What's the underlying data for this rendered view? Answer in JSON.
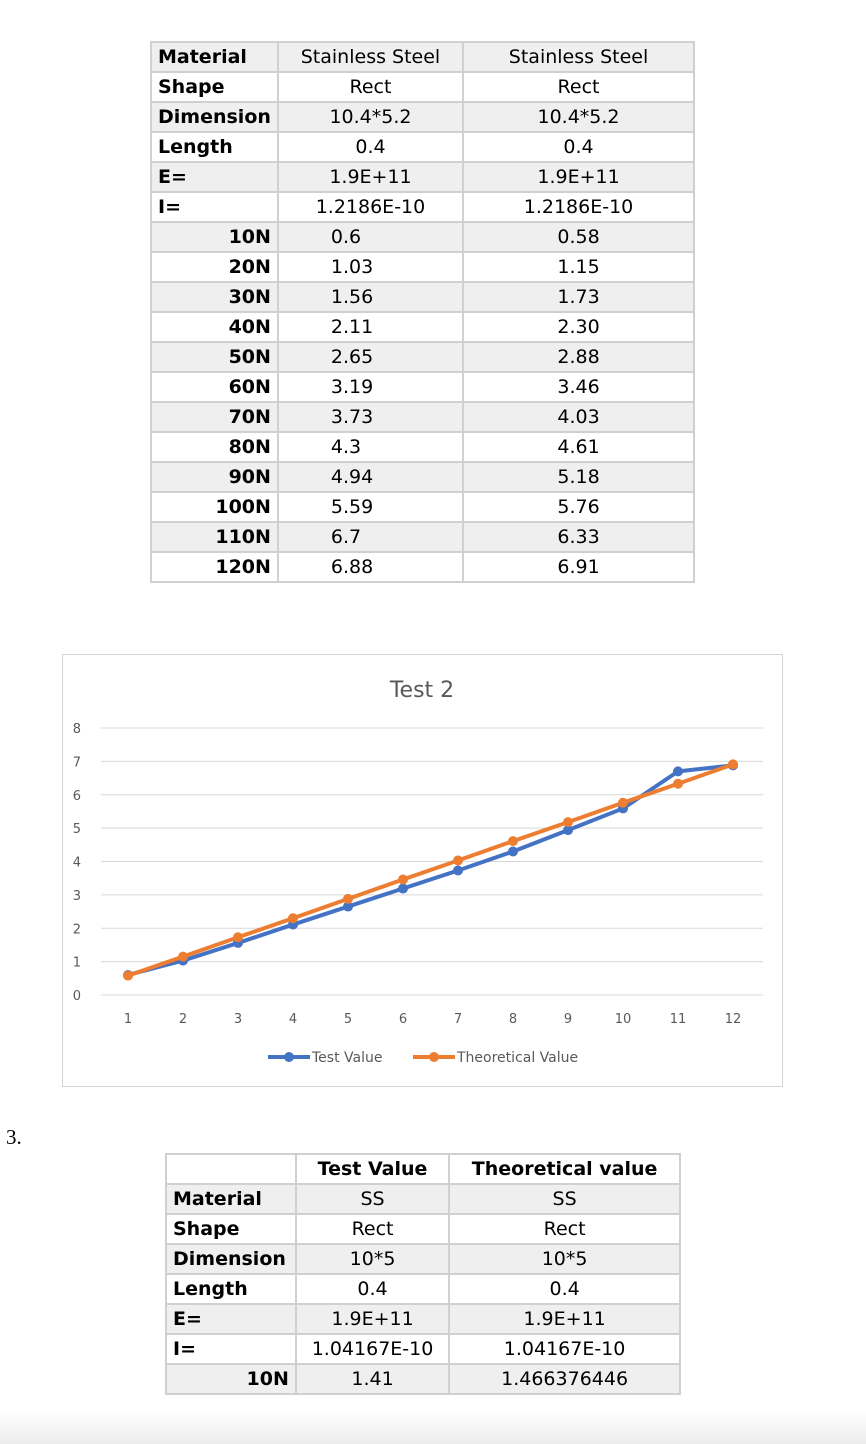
{
  "table1": {
    "rows": [
      {
        "label": "Material",
        "v1": "Stainless Steel",
        "v2": "Stainless Steel"
      },
      {
        "label": "Shape",
        "v1": "Rect",
        "v2": "Rect"
      },
      {
        "label": "Dimension",
        "v1": "10.4*5.2",
        "v2": "10.4*5.2"
      },
      {
        "label": "Length",
        "v1": "0.4",
        "v2": "0.4"
      },
      {
        "label": "E=",
        "v1": "1.9E+11",
        "v2": "1.9E+11"
      },
      {
        "label": "I=",
        "v1": "1.2186E-10",
        "v2": "1.2186E-10"
      }
    ],
    "loads": [
      {
        "label": "10N",
        "v1": "0.6",
        "v2": "0.58"
      },
      {
        "label": "20N",
        "v1": "1.03",
        "v2": "1.15"
      },
      {
        "label": "30N",
        "v1": "1.56",
        "v2": "1.73"
      },
      {
        "label": "40N",
        "v1": "2.11",
        "v2": "2.30"
      },
      {
        "label": "50N",
        "v1": "2.65",
        "v2": "2.88"
      },
      {
        "label": "60N",
        "v1": "3.19",
        "v2": "3.46"
      },
      {
        "label": "70N",
        "v1": "3.73",
        "v2": "4.03"
      },
      {
        "label": "80N",
        "v1": "4.3",
        "v2": "4.61"
      },
      {
        "label": "90N",
        "v1": "4.94",
        "v2": "5.18"
      },
      {
        "label": "100N",
        "v1": "5.59",
        "v2": "5.76"
      },
      {
        "label": "110N",
        "v1": "6.7",
        "v2": "6.33"
      },
      {
        "label": "120N",
        "v1": "6.88",
        "v2": "6.91"
      }
    ]
  },
  "chart_data": {
    "type": "line",
    "title": "Test 2",
    "xlabel": "",
    "ylabel": "",
    "x": [
      1,
      2,
      3,
      4,
      5,
      6,
      7,
      8,
      9,
      10,
      11,
      12
    ],
    "ylim": [
      0,
      8
    ],
    "yticks": [
      "0",
      "1",
      "2",
      "3",
      "4",
      "5",
      "6",
      "7",
      "8"
    ],
    "xticks": [
      "1",
      "2",
      "3",
      "4",
      "5",
      "6",
      "7",
      "8",
      "9",
      "10",
      "11",
      "12"
    ],
    "grid": true,
    "legend": "bottom",
    "series": [
      {
        "name": "Test Value",
        "color": "#4472c4",
        "values": [
          0.6,
          1.03,
          1.56,
          2.11,
          2.65,
          3.19,
          3.73,
          4.3,
          4.94,
          5.59,
          6.7,
          6.88
        ]
      },
      {
        "name": "Theoretical Value",
        "color": "#ed7d31",
        "values": [
          0.58,
          1.15,
          1.73,
          2.3,
          2.88,
          3.46,
          4.03,
          4.61,
          5.18,
          5.76,
          6.33,
          6.91
        ]
      }
    ]
  },
  "section_number": "3.",
  "table2": {
    "header": {
      "label": "",
      "v1": "Test Value",
      "v2": "Theoretical value"
    },
    "rows": [
      {
        "label": "Material",
        "v1": "SS",
        "v2": "SS"
      },
      {
        "label": "Shape",
        "v1": "Rect",
        "v2": "Rect"
      },
      {
        "label": "Dimension",
        "v1": "10*5",
        "v2": "10*5"
      },
      {
        "label": "Length",
        "v1": "0.4",
        "v2": "0.4"
      },
      {
        "label": "E=",
        "v1": "1.9E+11",
        "v2": "1.9E+11"
      },
      {
        "label": "I=",
        "v1": "1.04167E-10",
        "v2": "1.04167E-10"
      },
      {
        "label": "10N",
        "v1": "1.41",
        "v2": "1.466376446"
      }
    ]
  }
}
